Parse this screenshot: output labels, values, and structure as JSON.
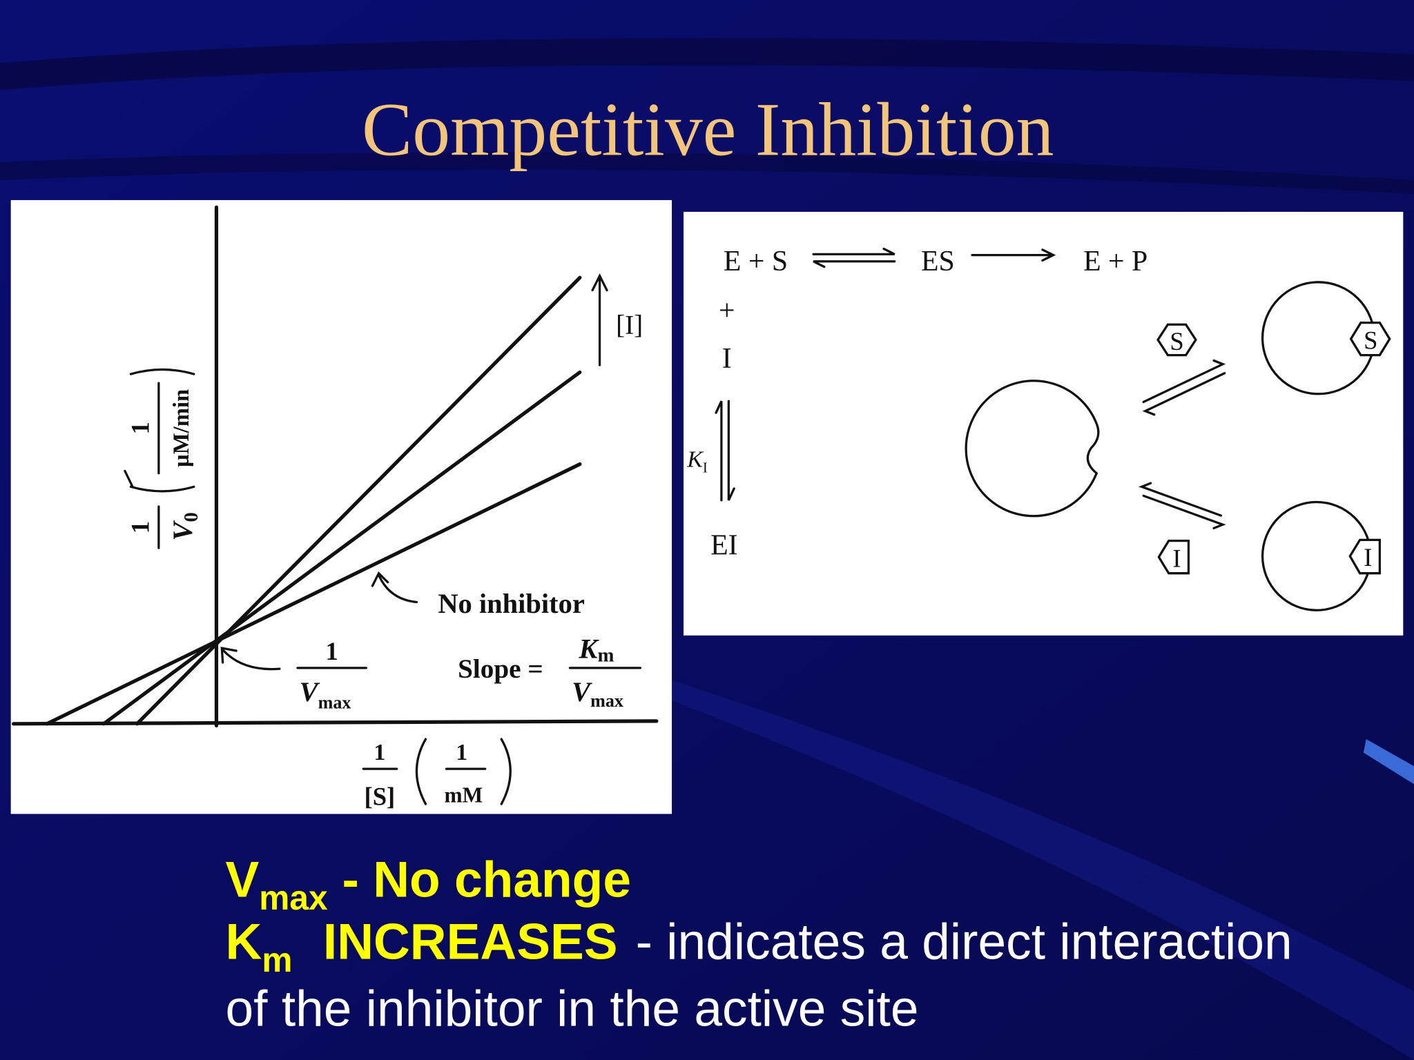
{
  "title": "Competitive Inhibition",
  "plot": {
    "y_axis": {
      "numerator": "1",
      "denominator": "V",
      "subscript": "0",
      "unit_numerator": "1",
      "unit_denominator": "µM/min"
    },
    "x_axis": {
      "numerator": "1",
      "denominator": "[S]",
      "unit_numerator": "1",
      "unit_denominator": "mM"
    },
    "arrow_label": "[I]",
    "line_label": "No inhibitor",
    "intercept": {
      "numerator": "1",
      "denominator": "V",
      "subscript": "max"
    },
    "slope": {
      "label": "Slope =",
      "numerator": "K",
      "numerator_subscript": "m",
      "denominator": "V",
      "denominator_subscript": "max"
    }
  },
  "scheme": {
    "reaction": [
      "E + S",
      "ES",
      "E + P"
    ],
    "plus": "+",
    "inhibitor": "I",
    "constant": "K",
    "constant_subscript": "I",
    "complex": "EI",
    "substrate_tag": "S",
    "inhibitor_tag": "I",
    "bound_substrate": "S",
    "bound_inhibitor": "I"
  },
  "notes": [
    {
      "symbol": "V",
      "subscript": "max",
      "text": "- No change"
    },
    {
      "symbol": "K",
      "subscript": "m",
      "emphasis": "INCREASES",
      "text": "- indicates a direct interaction"
    },
    {
      "text": "of the inhibitor in the active site"
    }
  ]
}
